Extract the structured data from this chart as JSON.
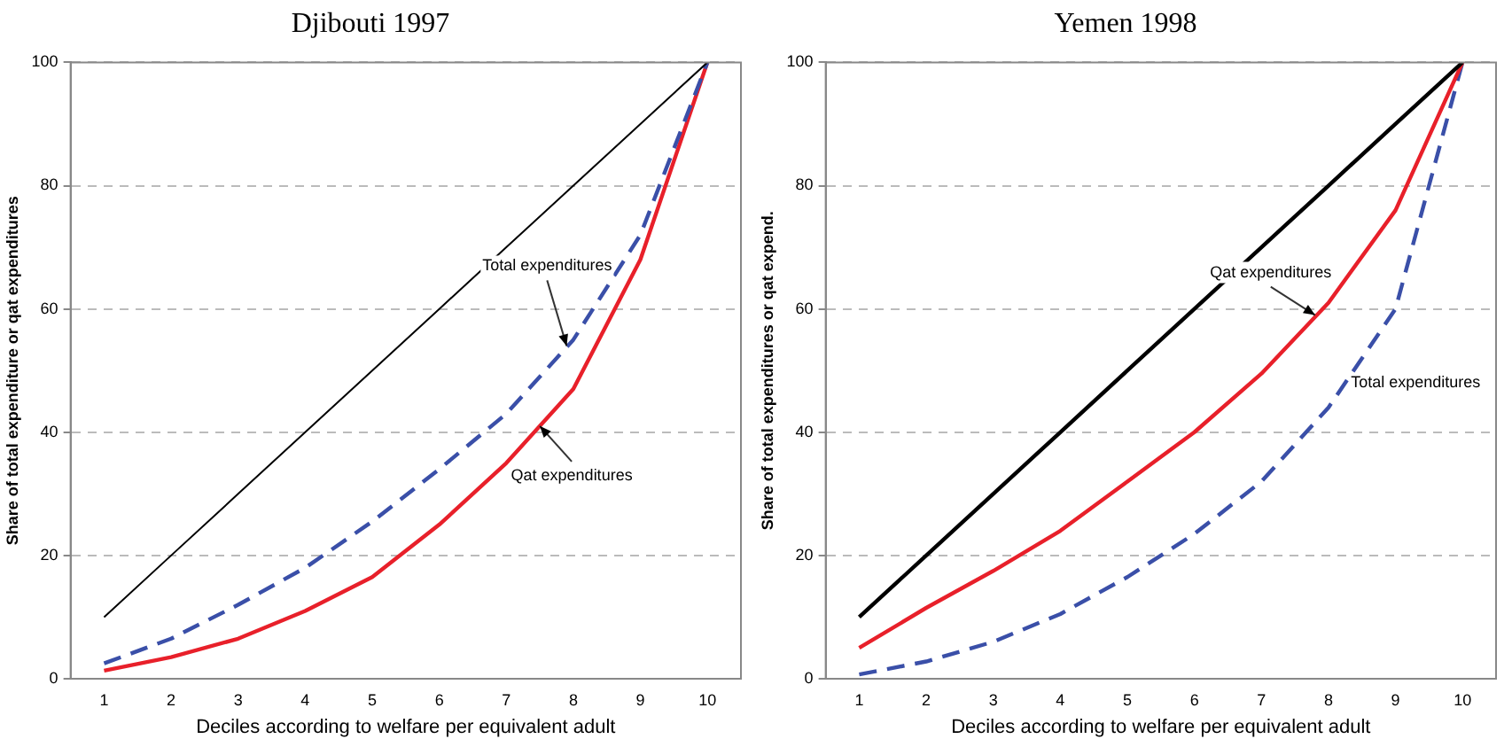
{
  "chart_data": [
    {
      "type": "line",
      "title": "Djibouti 1997",
      "xlabel": "Deciles according to welfare per equivalent adult",
      "ylabel": "Share of total expenditure or qat expenditures",
      "x": [
        1,
        2,
        3,
        4,
        5,
        6,
        7,
        8,
        9,
        10
      ],
      "xlim": [
        0.5,
        10.5
      ],
      "xticks": [
        1,
        2,
        3,
        4,
        5,
        6,
        7,
        8,
        9,
        10
      ],
      "ylim": [
        0,
        100
      ],
      "yticks": [
        0,
        20,
        40,
        60,
        80,
        100
      ],
      "grid": "y",
      "legend": false,
      "marker": "none",
      "series": [
        {
          "color": "#000000",
          "values": [
            10,
            20,
            30,
            40,
            50,
            60,
            70,
            80,
            90,
            100
          ],
          "line_style": "solid"
        },
        {
          "color": "#3a4fa8",
          "values": [
            2.5,
            6.5,
            12,
            18,
            25.5,
            34,
            43,
            55,
            72,
            100
          ],
          "line_style": "dashed"
        },
        {
          "color": "#e8202a",
          "values": [
            1.3,
            3.5,
            6.5,
            11,
            16.5,
            25,
            35,
            47,
            68,
            100
          ],
          "line_style": "solid"
        }
      ],
      "annotations": [
        {
          "text": "Total expenditures",
          "x": 7.9,
          "y": 54
        },
        {
          "text": "Qat expenditures",
          "x": 7.5,
          "y": 41
        }
      ]
    },
    {
      "type": "line",
      "title": "Yemen 1998",
      "xlabel": "Deciles according to welfare per equivalent adult",
      "ylabel": "Share of total expenditures or qat expend.",
      "x": [
        1,
        2,
        3,
        4,
        5,
        6,
        7,
        8,
        9,
        10
      ],
      "xlim": [
        0.5,
        10.5
      ],
      "xticks": [
        1,
        2,
        3,
        4,
        5,
        6,
        7,
        8,
        9,
        10
      ],
      "ylim": [
        0,
        100
      ],
      "yticks": [
        0,
        20,
        40,
        60,
        80,
        100
      ],
      "grid": "y",
      "legend": false,
      "marker": "none",
      "series": [
        {
          "color": "#000000",
          "values": [
            10,
            20,
            30,
            40,
            50,
            60,
            70,
            80,
            90,
            100
          ],
          "line_style": "solid"
        },
        {
          "color": "#e8202a",
          "values": [
            5,
            11.5,
            17.5,
            24,
            32,
            40,
            49.5,
            61,
            76,
            100
          ],
          "line_style": "solid"
        },
        {
          "color": "#3a4fa8",
          "values": [
            0.7,
            2.8,
            6,
            10.5,
            16.5,
            23.5,
            32,
            44,
            60,
            100
          ],
          "line_style": "dashed"
        }
      ],
      "annotations": [
        {
          "text": "Qat expenditures",
          "x": 7.8,
          "y": 59
        },
        "Total expenditures"
      ]
    }
  ]
}
